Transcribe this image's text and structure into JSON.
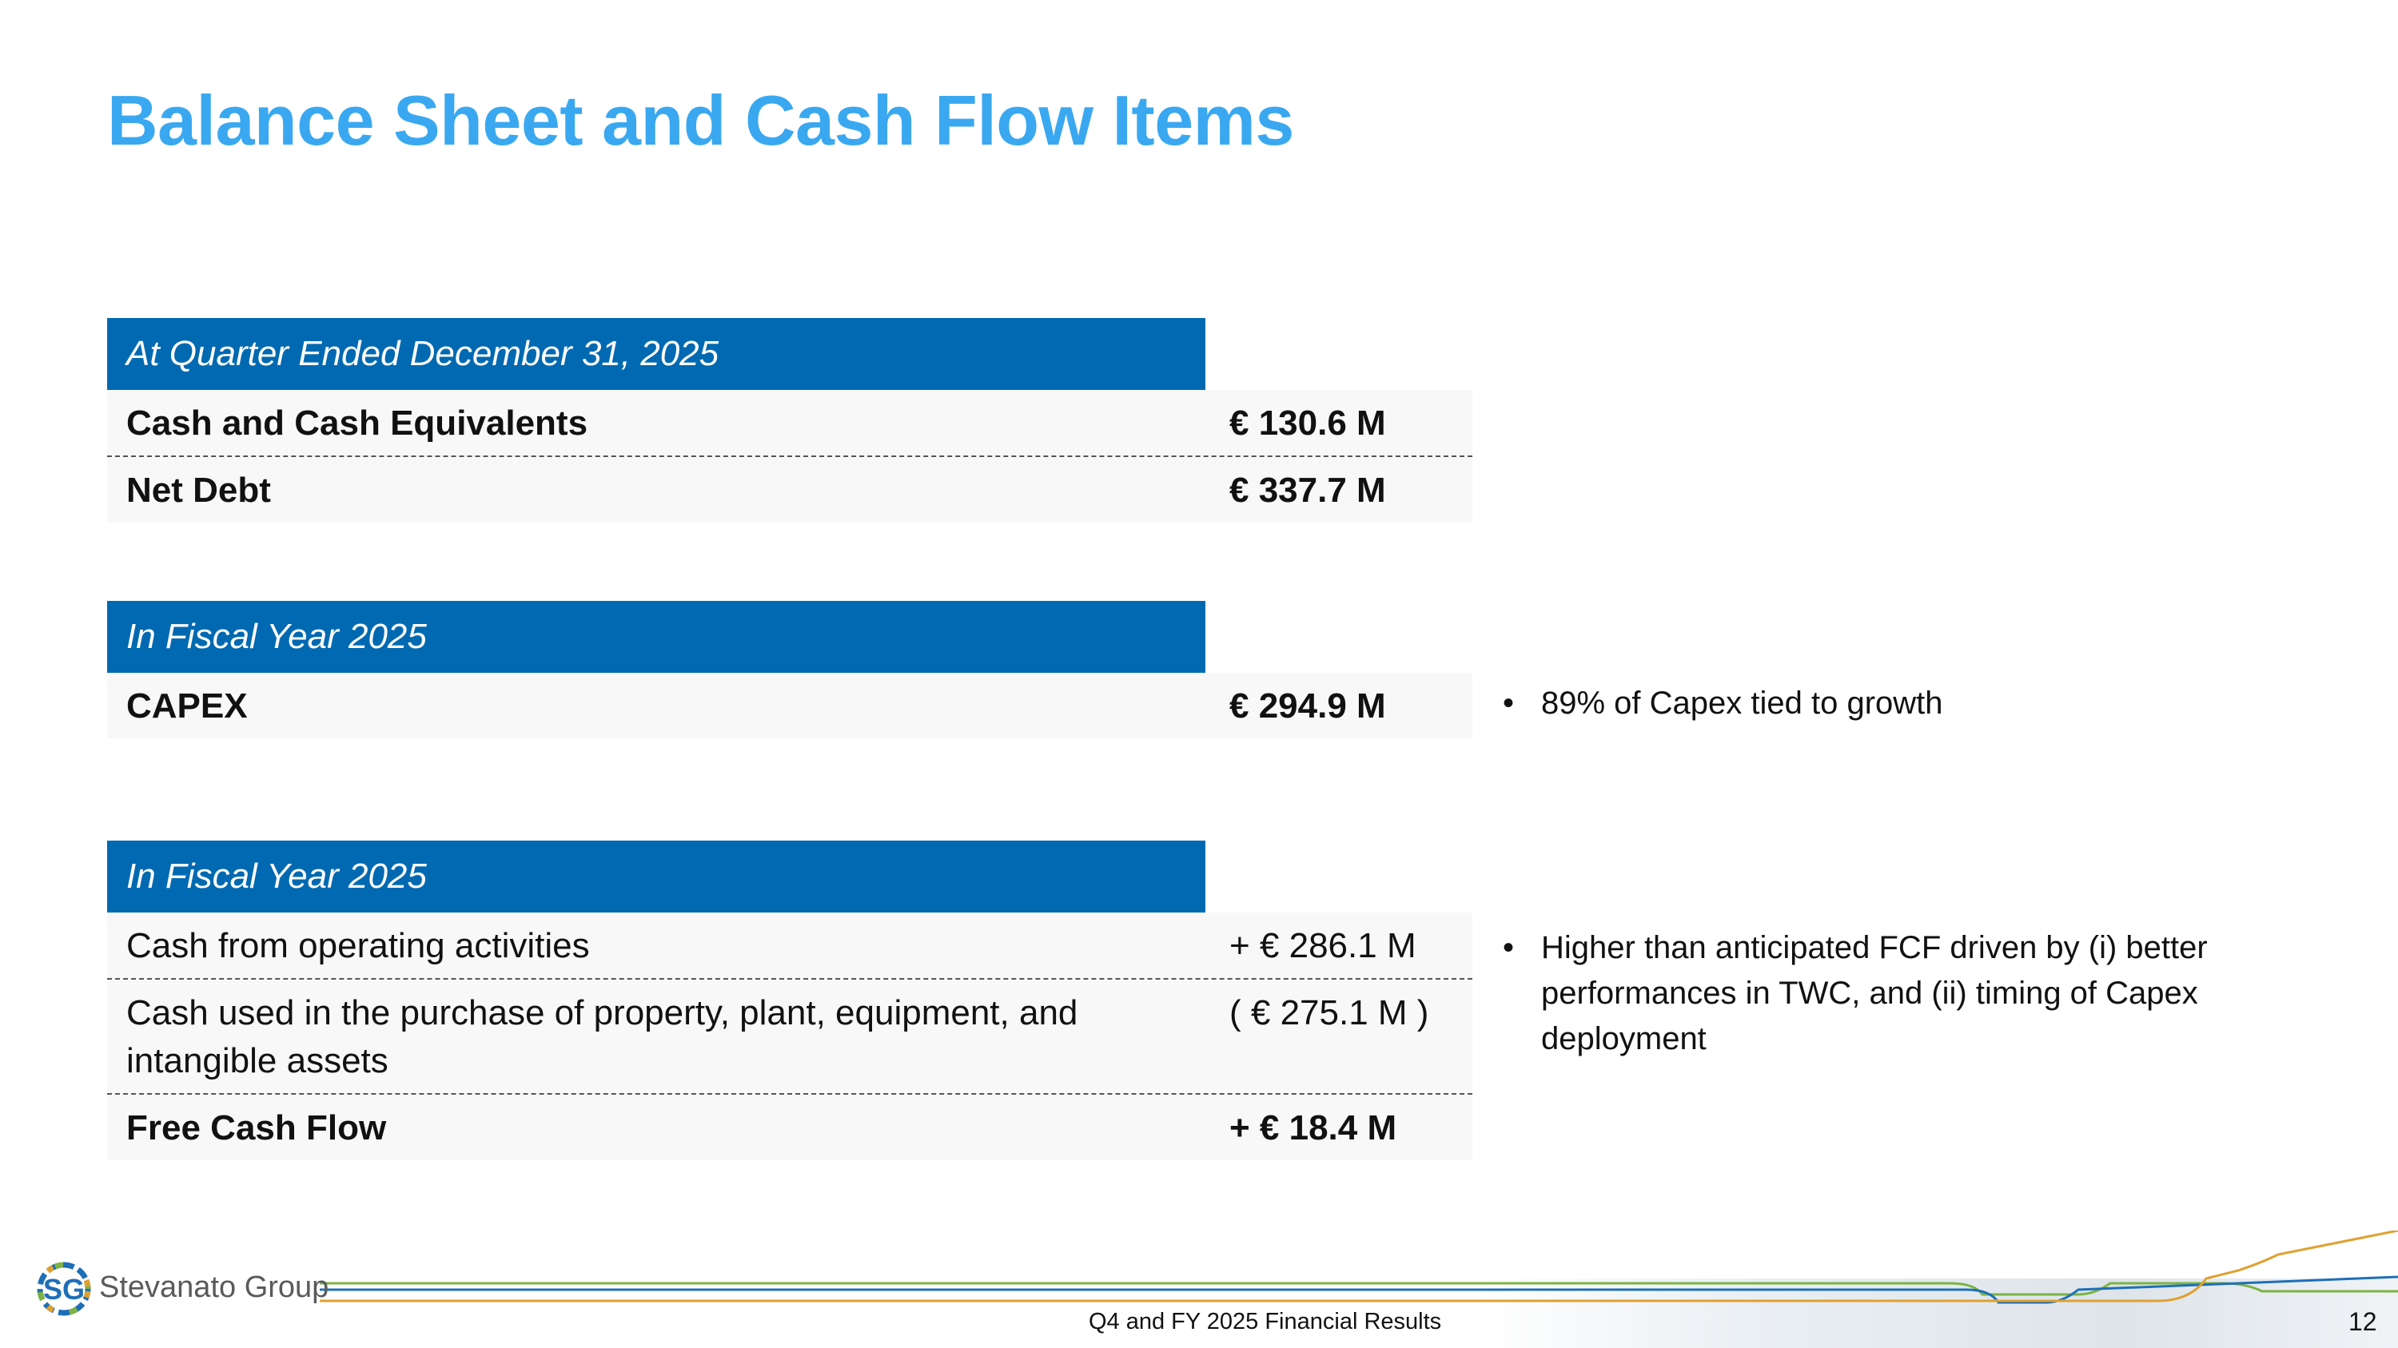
{
  "title": "Balance Sheet and Cash Flow Items",
  "sections": [
    {
      "header": "At Quarter Ended December 31, 2025",
      "rows": [
        {
          "label": "Cash and Cash Equivalents",
          "value": "€ 130.6 M"
        },
        {
          "label": "Net Debt",
          "value": "€ 337.7 M"
        }
      ]
    },
    {
      "header": "In Fiscal Year 2025",
      "rows": [
        {
          "label": "CAPEX",
          "value": "€ 294.9 M"
        }
      ]
    },
    {
      "header": "In Fiscal Year 2025",
      "rows": [
        {
          "label": "Cash from operating activities",
          "value": "+ € 286.1 M"
        },
        {
          "label": "Cash used in the purchase of property, plant, equipment, and intangible assets",
          "value": "( € 275.1 M )"
        },
        {
          "label": "Free Cash Flow",
          "value": "+ € 18.4 M"
        }
      ]
    }
  ],
  "bullets": [
    "89% of Capex tied to growth",
    "Higher than anticipated FCF driven by (i) better performances in TWC, and (ii) timing of Capex deployment"
  ],
  "footer": {
    "logo_initials": "SG",
    "company": "Stevanato Group",
    "report_title": "Q4 and FY 2025 Financial Results",
    "page_number": "12"
  },
  "colors": {
    "title": "#3aa8f0",
    "header_bg": "#0069b1",
    "line_green": "#7cb342",
    "line_blue": "#1e6fb8",
    "line_orange": "#e0a030"
  }
}
